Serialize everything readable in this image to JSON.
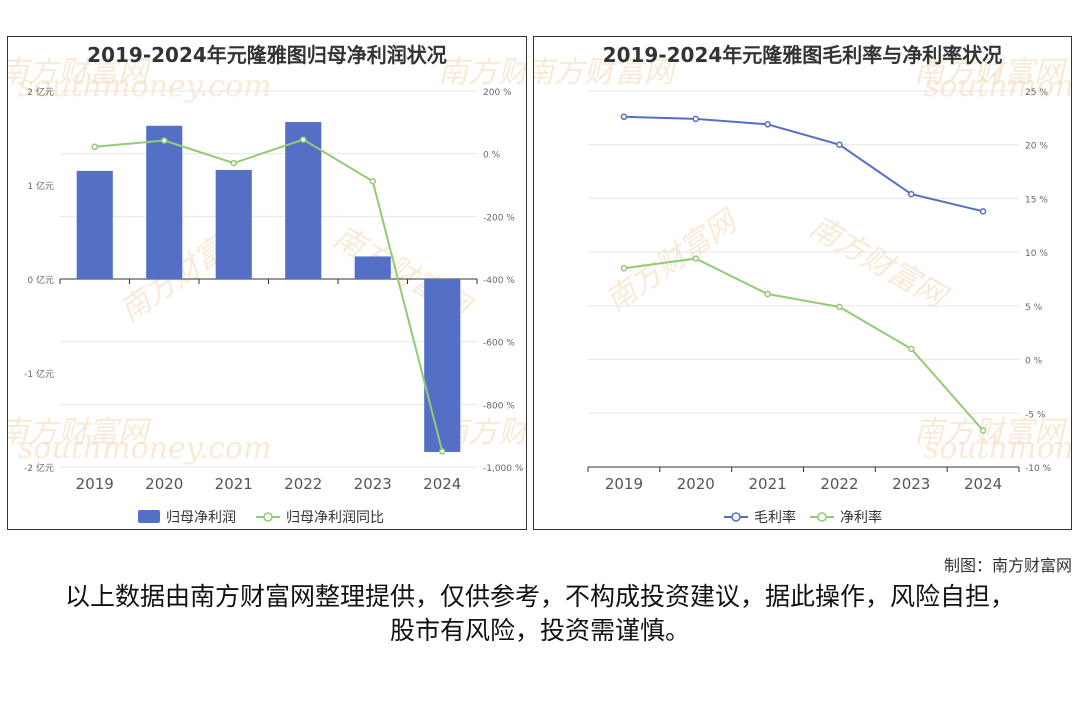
{
  "credit": "制图：南方财富网",
  "disclaimer": "以上数据由南方财富网整理提供，仅供参考，不构成投资建议，据此操作，风险自担，股市有风险，投资需谨慎。",
  "watermark": {
    "brand": "南方财富网",
    "url": "southmoney.com"
  },
  "colors": {
    "bar": "#5470c6",
    "green": "#91cc75",
    "blue": "#5470c6"
  },
  "chart_data": [
    {
      "type": "bar",
      "title": "2019-2024年元隆雅图归母净利润状况",
      "categories": [
        "2019",
        "2020",
        "2021",
        "2022",
        "2023",
        "2024"
      ],
      "series": [
        {
          "name": "归母净利润",
          "type": "bar",
          "axis": "left",
          "values": [
            1.15,
            1.63,
            1.16,
            1.67,
            0.24,
            -1.84
          ]
        },
        {
          "name": "归母净利润同比",
          "type": "line",
          "axis": "right",
          "values": [
            22,
            42,
            -30,
            45,
            -88,
            -950
          ]
        }
      ],
      "left_axis": {
        "ticks": [
          "2 亿元",
          "1 亿元",
          "0 亿元",
          "-1 亿元",
          "-2 亿元"
        ],
        "ylim": [
          -2,
          2
        ]
      },
      "right_axis": {
        "ticks": [
          "200 %",
          "0 %",
          "-200 %",
          "-400 %",
          "-600 %",
          "-800 %",
          "-1,000 %"
        ],
        "ylim": [
          -1000,
          200
        ]
      },
      "legend": "bottom"
    },
    {
      "type": "line",
      "title": "2019-2024年元隆雅图毛利率与净利率状况",
      "categories": [
        "2019",
        "2020",
        "2021",
        "2022",
        "2023",
        "2024"
      ],
      "series": [
        {
          "name": "毛利率",
          "values": [
            22.6,
            22.4,
            21.9,
            20.0,
            15.4,
            13.8
          ]
        },
        {
          "name": "净利率",
          "values": [
            8.5,
            9.4,
            6.1,
            4.9,
            1.0,
            -6.6
          ]
        }
      ],
      "right_axis": {
        "ticks": [
          "25 %",
          "20 %",
          "15 %",
          "10 %",
          "5 %",
          "0 %",
          "-5 %",
          "-10 %"
        ],
        "ylim": [
          -10,
          25
        ]
      },
      "legend": "bottom"
    }
  ]
}
